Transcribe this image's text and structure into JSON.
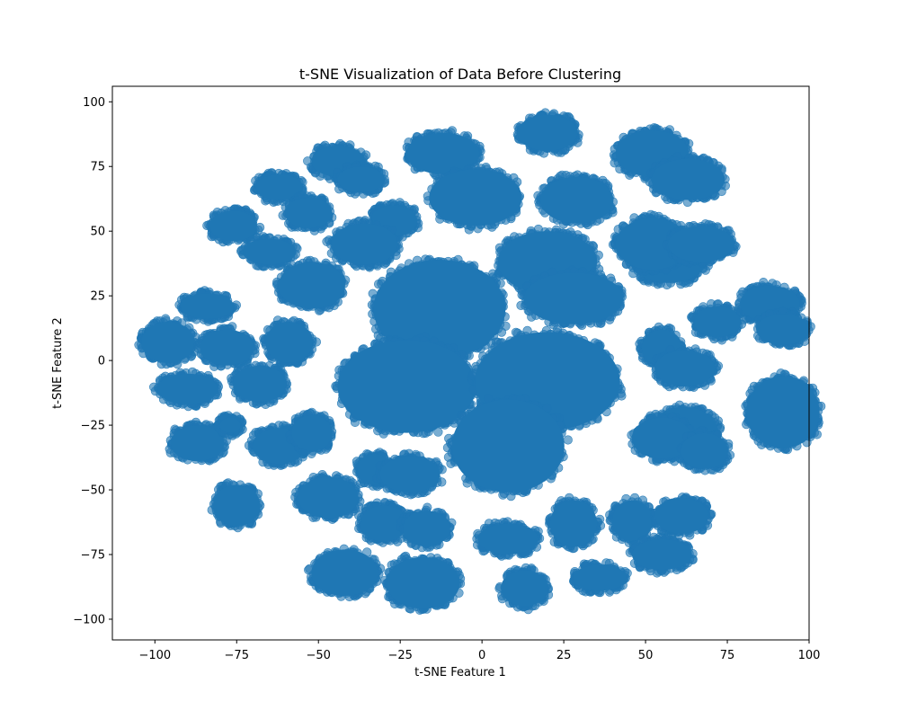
{
  "chart_data": {
    "type": "scatter",
    "title": "t-SNE Visualization of Data Before Clustering",
    "xlabel": "t-SNE Feature 1",
    "ylabel": "t-SNE Feature 2",
    "xlim": [
      -113,
      100
    ],
    "ylim": [
      -108,
      106
    ],
    "xticks": [
      -100,
      -75,
      -50,
      -25,
      0,
      25,
      50,
      75,
      100
    ],
    "yticks": [
      -100,
      -75,
      -50,
      -25,
      0,
      25,
      50,
      75,
      100
    ],
    "xtick_labels": [
      "−100",
      "−75",
      "−50",
      "−25",
      "0",
      "25",
      "50",
      "75",
      "100"
    ],
    "ytick_labels": [
      "−100",
      "−75",
      "−50",
      "−25",
      "0",
      "25",
      "50",
      "75",
      "100"
    ],
    "grid": false,
    "legend": "none",
    "point_color": "#1f77b4",
    "point_alpha": 0.6,
    "clusters": [
      {
        "x": -12,
        "y": 80,
        "rx": 12,
        "ry": 9
      },
      {
        "x": -2,
        "y": 63,
        "rx": 15,
        "ry": 12
      },
      {
        "x": 20,
        "y": 88,
        "rx": 10,
        "ry": 8
      },
      {
        "x": 29,
        "y": 62,
        "rx": 12,
        "ry": 10
      },
      {
        "x": 52,
        "y": 80,
        "rx": 12,
        "ry": 10
      },
      {
        "x": 63,
        "y": 70,
        "rx": 12,
        "ry": 9
      },
      {
        "x": -44,
        "y": 77,
        "rx": 9,
        "ry": 7
      },
      {
        "x": -37,
        "y": 70,
        "rx": 8,
        "ry": 6
      },
      {
        "x": -62,
        "y": 67,
        "rx": 8,
        "ry": 6
      },
      {
        "x": -53,
        "y": 57,
        "rx": 8,
        "ry": 7
      },
      {
        "x": -76,
        "y": 52,
        "rx": 8,
        "ry": 7
      },
      {
        "x": -65,
        "y": 42,
        "rx": 9,
        "ry": 6
      },
      {
        "x": -27,
        "y": 54,
        "rx": 8,
        "ry": 7
      },
      {
        "x": -36,
        "y": 45,
        "rx": 11,
        "ry": 9
      },
      {
        "x": -52,
        "y": 29,
        "rx": 11,
        "ry": 10
      },
      {
        "x": -13,
        "y": 20,
        "rx": 21,
        "ry": 20
      },
      {
        "x": 20,
        "y": 38,
        "rx": 16,
        "ry": 13
      },
      {
        "x": 28,
        "y": 24,
        "rx": 16,
        "ry": 11
      },
      {
        "x": 57,
        "y": 40,
        "rx": 13,
        "ry": 11
      },
      {
        "x": 52,
        "y": 45,
        "rx": 12,
        "ry": 11
      },
      {
        "x": 67,
        "y": 45,
        "rx": 11,
        "ry": 8
      },
      {
        "x": 72,
        "y": 15,
        "rx": 8,
        "ry": 7
      },
      {
        "x": 88,
        "y": 22,
        "rx": 10,
        "ry": 8
      },
      {
        "x": 92,
        "y": 12,
        "rx": 9,
        "ry": 7
      },
      {
        "x": -96,
        "y": 7,
        "rx": 9,
        "ry": 9
      },
      {
        "x": -84,
        "y": 21,
        "rx": 9,
        "ry": 6
      },
      {
        "x": -78,
        "y": 5,
        "rx": 9,
        "ry": 8
      },
      {
        "x": -90,
        "y": -11,
        "rx": 10,
        "ry": 7
      },
      {
        "x": -68,
        "y": -9,
        "rx": 9,
        "ry": 8
      },
      {
        "x": -59,
        "y": 7,
        "rx": 8,
        "ry": 9
      },
      {
        "x": -23,
        "y": -10,
        "rx": 22,
        "ry": 19
      },
      {
        "x": 20,
        "y": -8,
        "rx": 23,
        "ry": 20
      },
      {
        "x": 8,
        "y": -33,
        "rx": 18,
        "ry": 19
      },
      {
        "x": 55,
        "y": 5,
        "rx": 7,
        "ry": 8
      },
      {
        "x": 62,
        "y": -3,
        "rx": 10,
        "ry": 8
      },
      {
        "x": 92,
        "y": -20,
        "rx": 12,
        "ry": 15
      },
      {
        "x": 62,
        "y": -28,
        "rx": 11,
        "ry": 11
      },
      {
        "x": 55,
        "y": -30,
        "rx": 10,
        "ry": 9
      },
      {
        "x": 68,
        "y": -35,
        "rx": 8,
        "ry": 8
      },
      {
        "x": -87,
        "y": -32,
        "rx": 9,
        "ry": 8
      },
      {
        "x": -77,
        "y": -25,
        "rx": 4,
        "ry": 4
      },
      {
        "x": -62,
        "y": -33,
        "rx": 9,
        "ry": 8
      },
      {
        "x": -52,
        "y": -28,
        "rx": 7,
        "ry": 8
      },
      {
        "x": -75,
        "y": -56,
        "rx": 8,
        "ry": 9
      },
      {
        "x": -47,
        "y": -53,
        "rx": 10,
        "ry": 9
      },
      {
        "x": -33,
        "y": -42,
        "rx": 6,
        "ry": 7
      },
      {
        "x": -22,
        "y": -44,
        "rx": 10,
        "ry": 8
      },
      {
        "x": -30,
        "y": -63,
        "rx": 8,
        "ry": 8
      },
      {
        "x": -17,
        "y": -65,
        "rx": 8,
        "ry": 8
      },
      {
        "x": -42,
        "y": -82,
        "rx": 11,
        "ry": 10
      },
      {
        "x": -18,
        "y": -86,
        "rx": 12,
        "ry": 11
      },
      {
        "x": 8,
        "y": -69,
        "rx": 10,
        "ry": 7
      },
      {
        "x": 13,
        "y": -88,
        "rx": 8,
        "ry": 8
      },
      {
        "x": 28,
        "y": -63,
        "rx": 8,
        "ry": 10
      },
      {
        "x": 36,
        "y": -84,
        "rx": 9,
        "ry": 6
      },
      {
        "x": 46,
        "y": -62,
        "rx": 7,
        "ry": 9
      },
      {
        "x": 61,
        "y": -60,
        "rx": 9,
        "ry": 8
      },
      {
        "x": 55,
        "y": -75,
        "rx": 10,
        "ry": 7
      }
    ]
  }
}
